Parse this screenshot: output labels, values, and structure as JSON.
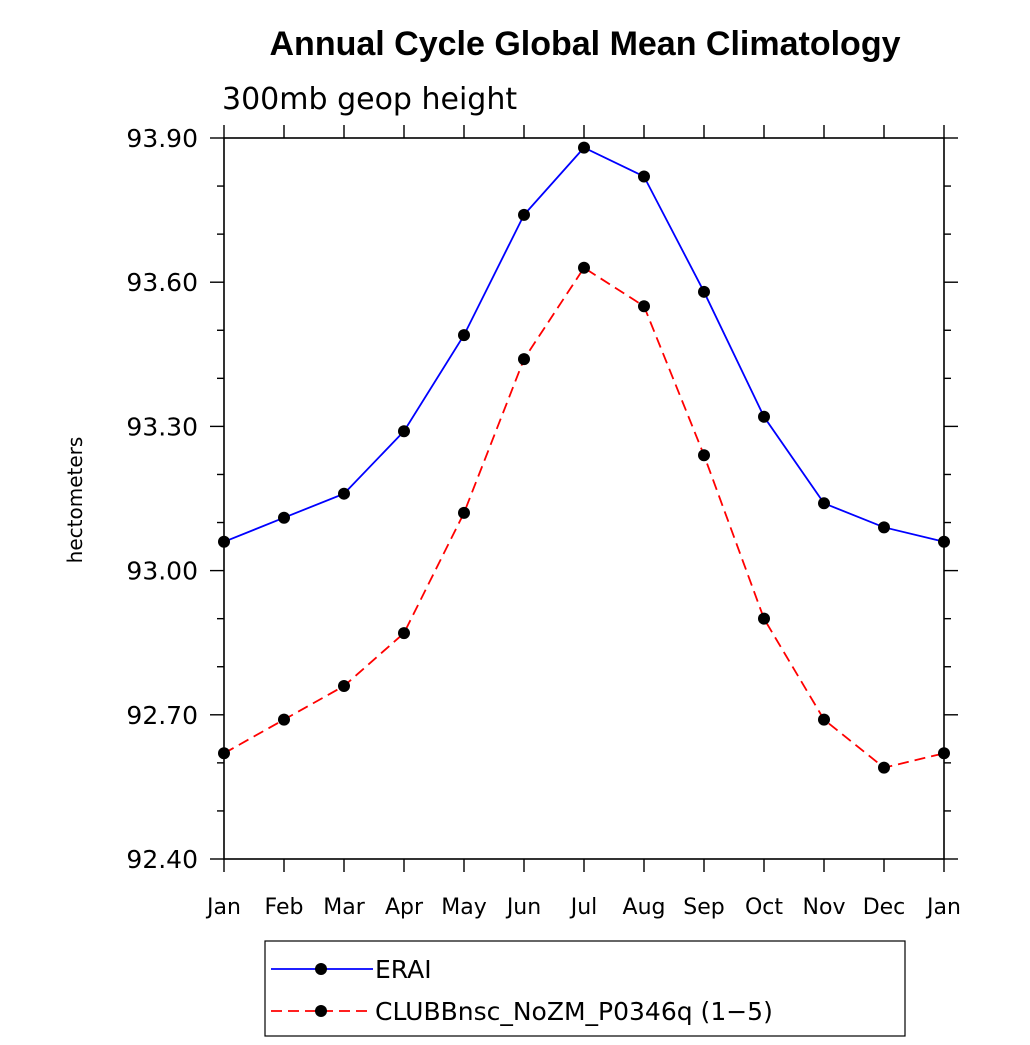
{
  "chart_data": {
    "type": "line",
    "title": "Annual Cycle Global Mean Climatology",
    "subtitle": "300mb geop height",
    "xlabel": "",
    "ylabel": "hectometers",
    "categories": [
      "Jan",
      "Feb",
      "Mar",
      "Apr",
      "May",
      "Jun",
      "Jul",
      "Aug",
      "Sep",
      "Oct",
      "Nov",
      "Dec",
      "Jan"
    ],
    "ylim": [
      92.4,
      93.9
    ],
    "yticks": [
      "92.40",
      "92.70",
      "93.00",
      "93.30",
      "93.60",
      "93.90"
    ],
    "series": [
      {
        "name": "ERAI",
        "color": "#0000ff",
        "dash": "solid",
        "values": [
          93.06,
          93.11,
          93.16,
          93.29,
          93.49,
          93.74,
          93.88,
          93.82,
          93.58,
          93.32,
          93.14,
          93.09,
          93.06
        ]
      },
      {
        "name": "CLUBBnsc_NoZM_P0346q (1−5)",
        "color": "#ff0000",
        "dash": "dashed",
        "values": [
          92.62,
          92.69,
          92.76,
          92.87,
          93.12,
          93.44,
          93.63,
          93.55,
          93.24,
          92.9,
          92.69,
          92.59,
          92.62
        ]
      }
    ],
    "legend_position": "bottom",
    "grid": false
  }
}
